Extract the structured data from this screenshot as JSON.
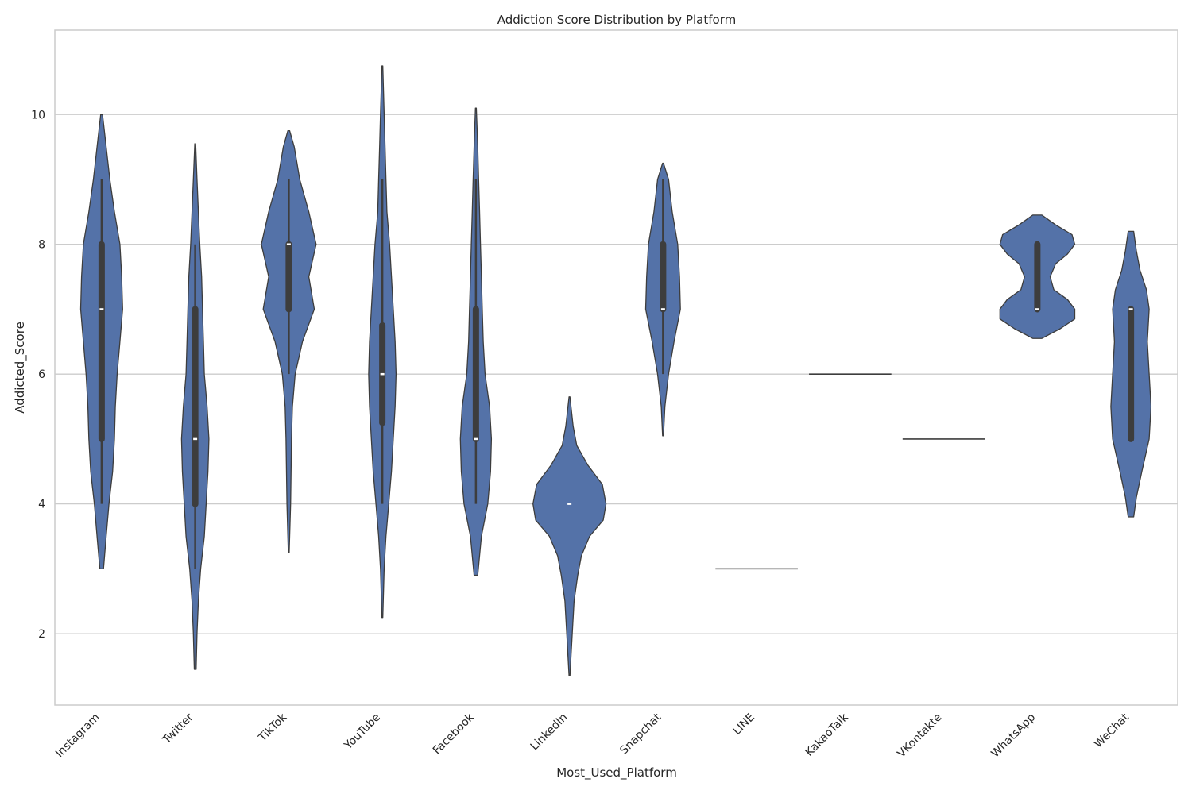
{
  "chart_data": {
    "type": "violin",
    "title": "Addiction Score Distribution by Platform",
    "xlabel": "Most_Used_Platform",
    "ylabel": "Addicted_Score",
    "ylim": [
      0.9,
      11.3
    ],
    "yticks": [
      2,
      4,
      6,
      8,
      10
    ],
    "grid": true,
    "colors": {
      "violin": "#5472a8",
      "outline": "#3d3d3d",
      "inner": "#3d3d3d",
      "median": "#ffffff",
      "grid": "#cccccc",
      "frame": "#cccccc"
    },
    "categories": [
      {
        "name": "Instagram",
        "range": [
          3,
          10
        ],
        "q1": 5,
        "median": 7,
        "q3": 8,
        "whisker": [
          4,
          9
        ],
        "profile": [
          [
            3.0,
            0.02
          ],
          [
            3.5,
            0.05
          ],
          [
            4.0,
            0.08
          ],
          [
            4.5,
            0.12
          ],
          [
            5.0,
            0.14
          ],
          [
            5.5,
            0.15
          ],
          [
            6.0,
            0.17
          ],
          [
            6.5,
            0.2
          ],
          [
            7.0,
            0.23
          ],
          [
            7.5,
            0.22
          ],
          [
            8.0,
            0.2
          ],
          [
            8.5,
            0.14
          ],
          [
            9.0,
            0.09
          ],
          [
            9.5,
            0.05
          ],
          [
            10.0,
            0.01
          ]
        ]
      },
      {
        "name": "Twitter",
        "range": [
          1.45,
          9.55
        ],
        "q1": 4,
        "median": 5,
        "q3": 7,
        "whisker": [
          3,
          8
        ],
        "profile": [
          [
            1.45,
            0.01
          ],
          [
            2.0,
            0.02
          ],
          [
            2.5,
            0.035
          ],
          [
            3.0,
            0.06
          ],
          [
            3.5,
            0.1
          ],
          [
            4.0,
            0.12
          ],
          [
            4.5,
            0.14
          ],
          [
            5.0,
            0.15
          ],
          [
            5.5,
            0.13
          ],
          [
            6.0,
            0.1
          ],
          [
            6.5,
            0.09
          ],
          [
            7.0,
            0.08
          ],
          [
            7.5,
            0.07
          ],
          [
            8.0,
            0.05
          ],
          [
            8.5,
            0.035
          ],
          [
            9.0,
            0.02
          ],
          [
            9.55,
            0.005
          ]
        ]
      },
      {
        "name": "TikTok",
        "range": [
          3.25,
          9.75
        ],
        "q1": 7,
        "median": 8,
        "q3": 8,
        "whisker": [
          6,
          9
        ],
        "profile": [
          [
            3.25,
            0.005
          ],
          [
            4.0,
            0.02
          ],
          [
            5.0,
            0.03
          ],
          [
            5.5,
            0.04
          ],
          [
            6.0,
            0.07
          ],
          [
            6.5,
            0.15
          ],
          [
            7.0,
            0.28
          ],
          [
            7.5,
            0.22
          ],
          [
            8.0,
            0.3
          ],
          [
            8.5,
            0.22
          ],
          [
            9.0,
            0.12
          ],
          [
            9.5,
            0.06
          ],
          [
            9.75,
            0.01
          ]
        ]
      },
      {
        "name": "YouTube",
        "range": [
          2.25,
          10.75
        ],
        "q1": 5.25,
        "median": 6,
        "q3": 6.75,
        "whisker": [
          4,
          9
        ],
        "profile": [
          [
            2.25,
            0.005
          ],
          [
            3.0,
            0.02
          ],
          [
            3.5,
            0.04
          ],
          [
            4.0,
            0.07
          ],
          [
            4.5,
            0.1
          ],
          [
            5.0,
            0.12
          ],
          [
            5.5,
            0.14
          ],
          [
            6.0,
            0.15
          ],
          [
            6.5,
            0.14
          ],
          [
            7.0,
            0.12
          ],
          [
            7.5,
            0.1
          ],
          [
            8.0,
            0.08
          ],
          [
            8.5,
            0.05
          ],
          [
            9.0,
            0.04
          ],
          [
            9.5,
            0.03
          ],
          [
            10.0,
            0.02
          ],
          [
            10.75,
            0.005
          ]
        ]
      },
      {
        "name": "Facebook",
        "range": [
          2.9,
          10.1
        ],
        "q1": 5,
        "median": 5,
        "q3": 7,
        "whisker": [
          4,
          9
        ],
        "profile": [
          [
            2.9,
            0.02
          ],
          [
            3.5,
            0.06
          ],
          [
            4.0,
            0.13
          ],
          [
            4.5,
            0.16
          ],
          [
            5.0,
            0.17
          ],
          [
            5.5,
            0.15
          ],
          [
            6.0,
            0.1
          ],
          [
            6.5,
            0.08
          ],
          [
            7.0,
            0.07
          ],
          [
            7.5,
            0.06
          ],
          [
            8.0,
            0.05
          ],
          [
            8.5,
            0.04
          ],
          [
            9.0,
            0.03
          ],
          [
            9.5,
            0.02
          ],
          [
            10.1,
            0.005
          ]
        ]
      },
      {
        "name": "LinkedIn",
        "range": [
          1.35,
          5.65
        ],
        "q1": 4,
        "median": 4,
        "q3": 4,
        "whisker": [
          4,
          4
        ],
        "profile": [
          [
            1.35,
            0.005
          ],
          [
            2.0,
            0.03
          ],
          [
            2.5,
            0.05
          ],
          [
            2.9,
            0.09
          ],
          [
            3.2,
            0.13
          ],
          [
            3.5,
            0.22
          ],
          [
            3.75,
            0.37
          ],
          [
            4.0,
            0.4
          ],
          [
            4.3,
            0.36
          ],
          [
            4.6,
            0.2
          ],
          [
            4.9,
            0.08
          ],
          [
            5.2,
            0.04
          ],
          [
            5.65,
            0.005
          ]
        ]
      },
      {
        "name": "Snapchat",
        "range": [
          5.05,
          9.25
        ],
        "q1": 7,
        "median": 7,
        "q3": 8,
        "whisker": [
          6,
          9
        ],
        "profile": [
          [
            5.05,
            0.005
          ],
          [
            5.5,
            0.02
          ],
          [
            6.0,
            0.06
          ],
          [
            6.5,
            0.12
          ],
          [
            7.0,
            0.19
          ],
          [
            7.5,
            0.18
          ],
          [
            8.0,
            0.16
          ],
          [
            8.5,
            0.1
          ],
          [
            9.0,
            0.06
          ],
          [
            9.25,
            0.005
          ]
        ]
      },
      {
        "name": "LINE",
        "range": [
          3,
          3
        ],
        "q1": 3,
        "median": 3,
        "q3": 3,
        "whisker": [
          3,
          3
        ],
        "profile": [],
        "point": 3
      },
      {
        "name": "KakaoTalk",
        "range": [
          6,
          6
        ],
        "q1": 6,
        "median": 6,
        "q3": 6,
        "whisker": [
          6,
          6
        ],
        "profile": [],
        "point": 6
      },
      {
        "name": "VKontakte",
        "range": [
          5,
          5
        ],
        "q1": 5,
        "median": 5,
        "q3": 5,
        "whisker": [
          5,
          5
        ],
        "profile": [],
        "point": 5
      },
      {
        "name": "WhatsApp",
        "range": [
          6.55,
          8.45
        ],
        "q1": 7,
        "median": 7,
        "q3": 8,
        "whisker": [
          7,
          8
        ],
        "profile": [
          [
            6.55,
            0.05
          ],
          [
            6.7,
            0.25
          ],
          [
            6.85,
            0.41
          ],
          [
            7.0,
            0.41
          ],
          [
            7.15,
            0.33
          ],
          [
            7.3,
            0.18
          ],
          [
            7.5,
            0.14
          ],
          [
            7.7,
            0.2
          ],
          [
            7.85,
            0.33
          ],
          [
            8.0,
            0.41
          ],
          [
            8.15,
            0.38
          ],
          [
            8.3,
            0.2
          ],
          [
            8.45,
            0.05
          ]
        ]
      },
      {
        "name": "WeChat",
        "range": [
          3.8,
          8.2
        ],
        "q1": 5,
        "median": 7,
        "q3": 7,
        "whisker": [
          5,
          7
        ],
        "profile": [
          [
            3.8,
            0.03
          ],
          [
            4.1,
            0.06
          ],
          [
            4.5,
            0.12
          ],
          [
            5.0,
            0.2
          ],
          [
            5.5,
            0.22
          ],
          [
            6.0,
            0.2
          ],
          [
            6.5,
            0.18
          ],
          [
            7.0,
            0.2
          ],
          [
            7.3,
            0.17
          ],
          [
            7.6,
            0.1
          ],
          [
            7.9,
            0.06
          ],
          [
            8.2,
            0.03
          ]
        ]
      }
    ]
  }
}
